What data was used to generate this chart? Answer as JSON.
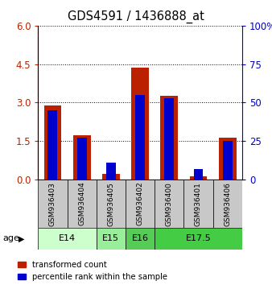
{
  "title": "GDS4591 / 1436888_at",
  "samples": [
    "GSM936403",
    "GSM936404",
    "GSM936405",
    "GSM936402",
    "GSM936400",
    "GSM936401",
    "GSM936406"
  ],
  "transformed_count": [
    2.88,
    1.72,
    0.22,
    4.35,
    3.25,
    0.12,
    1.62
  ],
  "percentile_rank_pct": [
    45,
    27,
    11,
    55,
    53,
    7,
    25
  ],
  "red_color": "#bb2000",
  "blue_color": "#0000cc",
  "bar_bg_color": "#c8c8c8",
  "ylim_left": [
    0,
    6
  ],
  "ylim_right": [
    0,
    100
  ],
  "yticks_left": [
    0,
    1.5,
    3,
    4.5,
    6
  ],
  "yticks_right": [
    0,
    25,
    50,
    75,
    100
  ],
  "age_group_configs": [
    {
      "label": "E14",
      "start": 0,
      "end": 1,
      "color": "#ccffcc"
    },
    {
      "label": "E15",
      "start": 2,
      "end": 2,
      "color": "#99ee99"
    },
    {
      "label": "E16",
      "start": 3,
      "end": 3,
      "color": "#55cc55"
    },
    {
      "label": "E17.5",
      "start": 4,
      "end": 6,
      "color": "#44cc44"
    }
  ]
}
